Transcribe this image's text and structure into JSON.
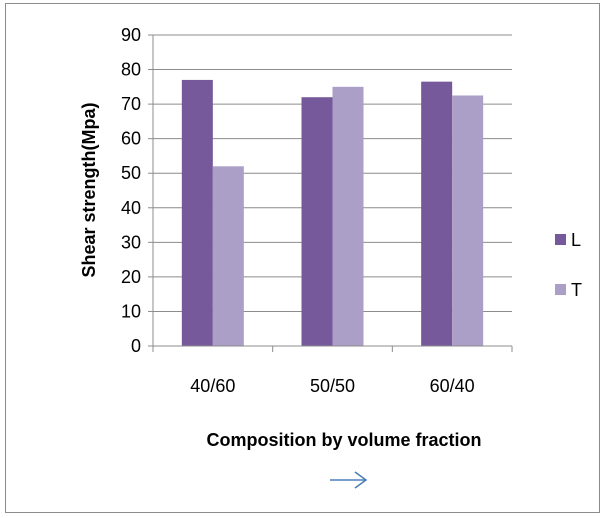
{
  "chart_data": {
    "type": "bar",
    "title": "",
    "xlabel": "Composition by volume fraction",
    "ylabel": "Shear strength(Mpa)",
    "categories": [
      "40/60",
      "50/50",
      "60/40"
    ],
    "series": [
      {
        "name": "L",
        "values": [
          77,
          72,
          76.5
        ],
        "color": "#76599a"
      },
      {
        "name": "T",
        "values": [
          52,
          75,
          72.5
        ],
        "color": "#ab9ec7"
      }
    ],
    "ylim": [
      0,
      90
    ],
    "yticks": [
      0,
      10,
      20,
      30,
      40,
      50,
      60,
      70,
      80,
      90
    ],
    "grid": true,
    "legend": "right",
    "arrow_icon": "right-arrow-icon",
    "arrow_color": "#4a7ebb"
  }
}
